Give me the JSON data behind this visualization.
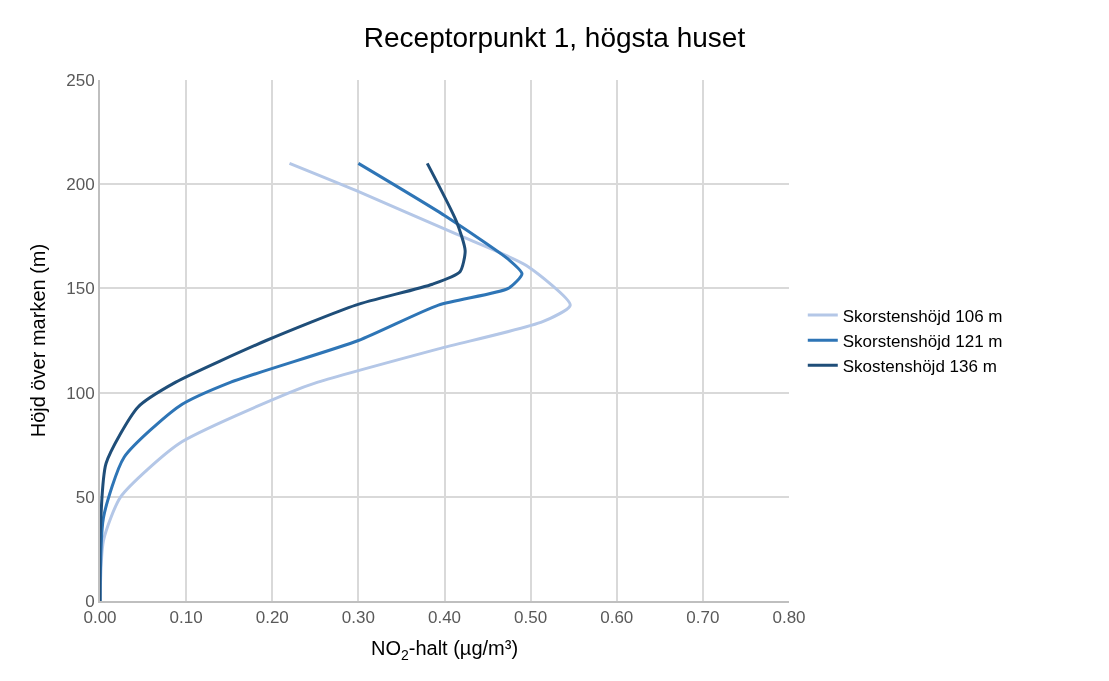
{
  "chart_data": {
    "type": "line",
    "title": "Receptorpunkt 1, högsta huset",
    "xlabel": "NO$_{2}$-halt (µg/m³)",
    "ylabel": "Höjd över marken (m)",
    "series": [
      {
        "name": "Skorstenshöjd 106 m",
        "color": "#b4c7e7",
        "x": [
          0,
          0.004,
          0.024,
          0.092,
          0.22,
          0.253,
          0.393,
          0.514,
          0.546,
          0.495,
          0.414,
          0.297,
          0.22
        ],
        "values": [
          0,
          29,
          50,
          75.6,
          100,
          105,
          121,
          134,
          142,
          161,
          176,
          197,
          210
        ]
      },
      {
        "name": "Skorstenshöjd 121 m",
        "color": "#2e75b6",
        "x": [
          0,
          0.004,
          0.028,
          0.092,
          0.152,
          0.3,
          0.393,
          0.474,
          0.49,
          0.474,
          0.4,
          0.3
        ],
        "values": [
          0,
          40,
          69,
          93.5,
          105,
          125,
          142,
          150,
          157,
          164,
          185,
          210
        ]
      },
      {
        "name": "Skostenshöjd 136 m",
        "color": "#1f4e79",
        "x": [
          0,
          0,
          0.007,
          0.044,
          0.088,
          0.193,
          0.297,
          0.386,
          0.418,
          0.424,
          0.414,
          0.38
        ],
        "values": [
          0,
          29,
          66,
          93,
          105,
          125,
          142,
          152,
          158,
          168,
          182,
          210
        ]
      }
    ],
    "xlim": [
      0,
      0.8
    ],
    "xticks": [
      {
        "value": 0,
        "label": "0.00"
      },
      {
        "value": 0.1,
        "label": "0.10"
      },
      {
        "value": 0.2,
        "label": "0.20"
      },
      {
        "value": 0.3,
        "label": "0.30"
      },
      {
        "value": 0.4,
        "label": "0.40"
      },
      {
        "value": 0.5,
        "label": "0.50"
      },
      {
        "value": 0.6,
        "label": "0.60"
      },
      {
        "value": 0.7,
        "label": "0.70"
      },
      {
        "value": 0.8,
        "label": "0.80"
      }
    ],
    "ylim": [
      0,
      250
    ],
    "yticks": [
      0,
      50,
      100,
      150,
      200,
      250
    ],
    "grid": true,
    "legend": "right",
    "marker": "none",
    "line_style": "solid"
  }
}
